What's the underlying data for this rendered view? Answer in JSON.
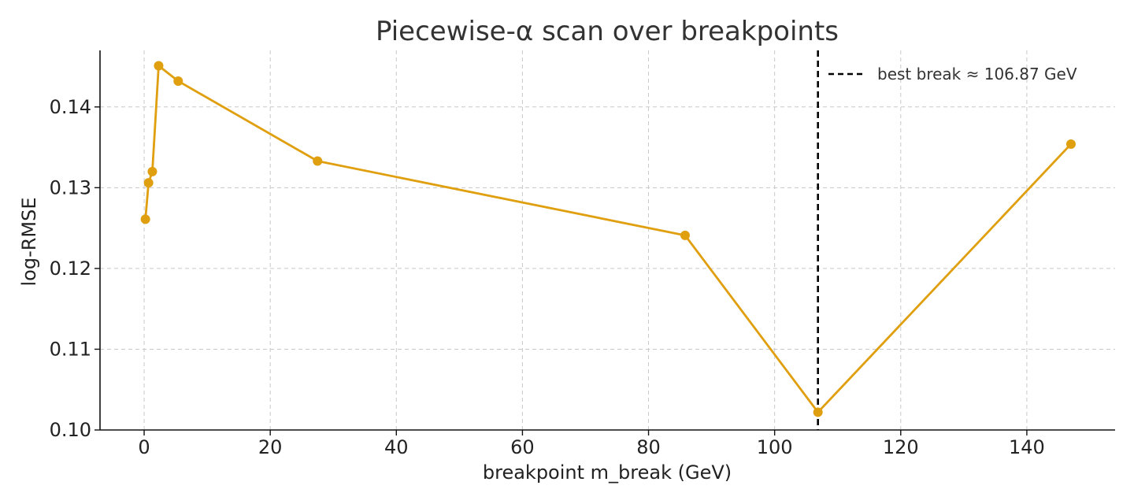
{
  "chart_data": {
    "type": "line",
    "title": "Piecewise-α scan over breakpoints",
    "xlabel": "breakpoint m_break (GeV)",
    "ylabel": "log-RMSE",
    "xlim": [
      -7,
      154
    ],
    "ylim": [
      0.1,
      0.147
    ],
    "xticks": [
      0,
      20,
      40,
      60,
      80,
      100,
      120,
      140
    ],
    "yticks": [
      0.1,
      0.11,
      0.12,
      0.13,
      0.14
    ],
    "ytick_labels": [
      "0.10",
      "0.11",
      "0.12",
      "0.13",
      "0.14"
    ],
    "grid": true,
    "series": [
      {
        "x": [
          0.2,
          0.7,
          1.3,
          2.3,
          5.4,
          27.5,
          85.8,
          106.87,
          147.0
        ],
        "y": [
          0.1261,
          0.1306,
          0.132,
          0.1451,
          0.1432,
          0.1333,
          0.1241,
          0.1022,
          0.1354
        ],
        "color": "#E09F0F",
        "marker": "circle"
      }
    ],
    "vline": {
      "x": 106.87,
      "style": "dashed",
      "color": "#000000",
      "label": "best break ≈ 106.87 GeV"
    },
    "legend": {
      "position": "top-right"
    }
  }
}
